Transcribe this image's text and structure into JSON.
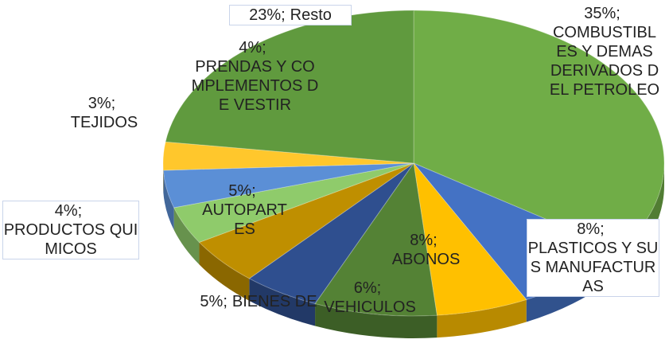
{
  "chart_data": {
    "type": "pie",
    "categories": [
      "COMBUSTIBLES Y DEMAS DERIVADOS DEL PETROLEO",
      "PLASTICOS Y SUS MANUFACTURAS",
      "VEHICULOS",
      "ABONOS",
      "BIENES DE",
      "AUTOPARTES",
      "PRODUCTOS QUIMICOS",
      "PRENDAS Y COMPLEMENTOS DE VESTIR",
      "TEJIDOS",
      "Resto"
    ],
    "values": [
      35,
      8,
      6,
      8,
      5,
      5,
      4,
      4,
      3,
      23
    ],
    "value_labels": [
      "35%;",
      "8%;",
      "6%;",
      "8%;",
      "5%;",
      "5%;",
      "4%;",
      "4%;",
      "3%;",
      "23%;"
    ],
    "colors": [
      "#70ad47",
      "#4472c4",
      "#ffc000",
      "#548235",
      "#2f4f8f",
      "#bf8f00",
      "#8fcb6b",
      "#5b8fd6",
      "#ffc72c",
      "#609a3e"
    ]
  }
}
